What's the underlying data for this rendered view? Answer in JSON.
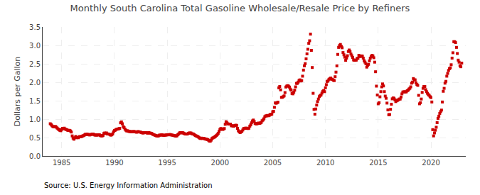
{
  "chart_data": {
    "type": "scatter",
    "title": "Monthly South Carolina Total Gasoline Wholesale/Resale Price by Refiners",
    "ylabel": "Dollars per Gallon",
    "annotations": [
      "Source: U.S. Energy Information Administration"
    ],
    "color": "#cc0000",
    "marker": "square",
    "grid": true,
    "xlim": [
      1983.2,
      2023.3
    ],
    "xticks": [
      1985,
      1990,
      1995,
      2000,
      2005,
      2010,
      2015,
      2020
    ],
    "ylim": [
      0.0,
      3.5
    ],
    "yticks": [
      {
        "value": 0.0,
        "label": "0.0"
      },
      0.5,
      {
        "value": 1.0,
        "label": "1.0"
      },
      1.5,
      {
        "value": 2.0,
        "label": "2.0"
      },
      2.5,
      {
        "value": 3.0,
        "label": "3.0"
      },
      3.5
    ],
    "x": [
      1983.917,
      1984.0,
      1984.083,
      1984.167,
      1984.25,
      1984.333,
      1984.417,
      1984.5,
      1984.583,
      1984.667,
      1984.75,
      1984.833,
      1984.917,
      1985.0,
      1985.083,
      1985.167,
      1985.25,
      1985.333,
      1985.417,
      1985.5,
      1985.583,
      1985.667,
      1985.75,
      1985.833,
      1985.917,
      1986.0,
      1986.083,
      1986.167,
      1986.25,
      1986.333,
      1986.417,
      1986.5,
      1986.583,
      1986.667,
      1986.75,
      1986.833,
      1986.917,
      1987.0,
      1987.083,
      1987.167,
      1987.25,
      1987.333,
      1987.417,
      1987.5,
      1987.583,
      1987.667,
      1987.75,
      1987.833,
      1987.917,
      1988.0,
      1988.083,
      1988.167,
      1988.25,
      1988.333,
      1988.417,
      1988.5,
      1988.583,
      1988.667,
      1988.75,
      1988.833,
      1988.917,
      1989.0,
      1989.083,
      1989.167,
      1989.25,
      1989.333,
      1989.417,
      1989.5,
      1989.583,
      1989.667,
      1989.75,
      1989.833,
      1989.917,
      1990.0,
      1990.083,
      1990.167,
      1990.25,
      1990.333,
      1990.417,
      1990.5,
      1990.583,
      1990.667,
      1990.75,
      1990.833,
      1990.917,
      1991.0,
      1991.083,
      1991.167,
      1991.25,
      1991.333,
      1991.417,
      1991.5,
      1991.583,
      1991.667,
      1991.75,
      1991.833,
      1991.917,
      1992.0,
      1992.083,
      1992.167,
      1992.25,
      1992.333,
      1992.417,
      1992.5,
      1992.583,
      1992.667,
      1992.75,
      1992.833,
      1992.917,
      1993.0,
      1993.083,
      1993.167,
      1993.25,
      1993.333,
      1993.417,
      1993.5,
      1993.583,
      1993.667,
      1993.75,
      1993.833,
      1993.917,
      1994.0,
      1994.083,
      1994.167,
      1994.25,
      1994.333,
      1994.417,
      1994.5,
      1994.583,
      1994.667,
      1994.75,
      1994.833,
      1994.917,
      1995.0,
      1995.083,
      1995.167,
      1995.25,
      1995.333,
      1995.417,
      1995.5,
      1995.583,
      1995.667,
      1995.75,
      1995.833,
      1995.917,
      1996.0,
      1996.083,
      1996.167,
      1996.25,
      1996.333,
      1996.417,
      1996.5,
      1996.583,
      1996.667,
      1996.75,
      1996.833,
      1996.917,
      1997.0,
      1997.083,
      1997.167,
      1997.25,
      1997.333,
      1997.417,
      1997.5,
      1997.583,
      1997.667,
      1997.75,
      1997.833,
      1997.917,
      1998.0,
      1998.083,
      1998.167,
      1998.25,
      1998.333,
      1998.417,
      1998.5,
      1998.583,
      1998.667,
      1998.75,
      1998.833,
      1998.917,
      1999.0,
      1999.083,
      1999.167,
      1999.25,
      1999.333,
      1999.417,
      1999.5,
      1999.583,
      1999.667,
      1999.75,
      1999.833,
      1999.917,
      2000.0,
      2000.083,
      2000.167,
      2000.25,
      2000.333,
      2000.417,
      2000.5,
      2000.583,
      2000.667,
      2000.75,
      2000.833,
      2000.917,
      2001.0,
      2001.083,
      2001.167,
      2001.25,
      2001.333,
      2001.417,
      2001.5,
      2001.583,
      2001.667,
      2001.75,
      2001.833,
      2001.917,
      2002.0,
      2002.083,
      2002.167,
      2002.25,
      2002.333,
      2002.417,
      2002.5,
      2002.583,
      2002.667,
      2002.75,
      2002.833,
      2002.917,
      2003.0,
      2003.083,
      2003.167,
      2003.25,
      2003.333,
      2003.417,
      2003.5,
      2003.583,
      2003.667,
      2003.75,
      2003.833,
      2003.917,
      2004.0,
      2004.083,
      2004.167,
      2004.25,
      2004.333,
      2004.417,
      2004.5,
      2004.583,
      2004.667,
      2004.75,
      2004.833,
      2004.917,
      2005.0,
      2005.083,
      2005.167,
      2005.25,
      2005.333,
      2005.417,
      2005.5,
      2005.583,
      2005.667,
      2005.75,
      2005.833,
      2005.917,
      2006.0,
      2006.083,
      2006.167,
      2006.25,
      2006.333,
      2006.417,
      2006.5,
      2006.583,
      2006.667,
      2006.75,
      2006.833,
      2006.917,
      2007.0,
      2007.083,
      2007.167,
      2007.25,
      2007.333,
      2007.417,
      2007.5,
      2007.583,
      2007.667,
      2007.75,
      2007.833,
      2007.917,
      2008.0,
      2008.083,
      2008.167,
      2008.25,
      2008.333,
      2008.417,
      2008.5,
      2008.583,
      2008.667,
      2008.75,
      2008.833,
      2008.917,
      2009.0,
      2009.083,
      2009.167,
      2009.25,
      2009.333,
      2009.417,
      2009.5,
      2009.583,
      2009.667,
      2009.75,
      2009.833,
      2009.917,
      2010.0,
      2010.083,
      2010.167,
      2010.25,
      2010.333,
      2010.417,
      2010.5,
      2010.583,
      2010.667,
      2010.75,
      2010.833,
      2010.917,
      2011.0,
      2011.083,
      2011.167,
      2011.25,
      2011.333,
      2011.417,
      2011.5,
      2011.583,
      2011.667,
      2011.75,
      2011.833,
      2011.917,
      2012.0,
      2012.083,
      2012.167,
      2012.25,
      2012.333,
      2012.417,
      2012.5,
      2012.583,
      2012.667,
      2012.75,
      2012.833,
      2012.917,
      2013.0,
      2013.083,
      2013.167,
      2013.25,
      2013.333,
      2013.417,
      2013.5,
      2013.583,
      2013.667,
      2013.75,
      2013.833,
      2013.917,
      2014.0,
      2014.083,
      2014.167,
      2014.25,
      2014.333,
      2014.417,
      2014.5,
      2014.583,
      2014.667,
      2014.75,
      2014.833,
      2014.917,
      2015.0,
      2015.083,
      2015.167,
      2015.25,
      2015.333,
      2015.417,
      2015.5,
      2015.583,
      2015.667,
      2015.75,
      2015.833,
      2015.917,
      2016.0,
      2016.083,
      2016.167,
      2016.25,
      2016.333,
      2016.417,
      2016.5,
      2016.583,
      2016.667,
      2016.75,
      2016.833,
      2016.917,
      2017.0,
      2017.083,
      2017.167,
      2017.25,
      2017.333,
      2017.417,
      2017.5,
      2017.583,
      2017.667,
      2017.75,
      2017.833,
      2017.917,
      2018.0,
      2018.083,
      2018.167,
      2018.25,
      2018.333,
      2018.417,
      2018.5,
      2018.583,
      2018.667,
      2018.75,
      2018.833,
      2018.917,
      2019.0,
      2019.083,
      2019.167,
      2019.25,
      2019.333,
      2019.417,
      2019.5,
      2019.583,
      2019.667,
      2019.75,
      2019.833,
      2019.917,
      2020.0,
      2020.083,
      2020.167,
      2020.25,
      2020.333,
      2020.417,
      2020.5,
      2020.583,
      2020.667,
      2020.75,
      2020.833,
      2020.917,
      2021.0,
      2021.083,
      2021.167,
      2021.25,
      2021.333,
      2021.417,
      2021.5,
      2021.583,
      2021.667,
      2021.75,
      2021.833,
      2021.917,
      2022.0,
      2022.083,
      2022.167,
      2022.25,
      2022.333,
      2022.417,
      2022.5,
      2022.583,
      2022.667,
      2022.75,
      2022.833,
      2022.917
    ],
    "values": [
      0.875,
      0.855,
      0.82,
      0.8,
      0.79,
      0.795,
      0.8,
      0.78,
      0.755,
      0.73,
      0.715,
      0.695,
      0.685,
      0.72,
      0.75,
      0.74,
      0.755,
      0.73,
      0.72,
      0.71,
      0.695,
      0.695,
      0.695,
      0.68,
      0.65,
      0.545,
      0.485,
      0.455,
      0.495,
      0.53,
      0.495,
      0.5,
      0.495,
      0.525,
      0.525,
      0.52,
      0.535,
      0.545,
      0.555,
      0.57,
      0.59,
      0.58,
      0.595,
      0.585,
      0.575,
      0.57,
      0.585,
      0.585,
      0.595,
      0.595,
      0.575,
      0.565,
      0.575,
      0.565,
      0.57,
      0.575,
      0.575,
      0.555,
      0.545,
      0.545,
      0.555,
      0.61,
      0.625,
      0.61,
      0.625,
      0.6,
      0.595,
      0.595,
      0.575,
      0.565,
      0.575,
      0.6,
      0.655,
      0.69,
      0.7,
      0.72,
      0.73,
      0.73,
      0.74,
      0.75,
      0.9,
      0.925,
      0.875,
      0.8,
      0.77,
      0.73,
      0.7,
      0.68,
      0.685,
      0.67,
      0.665,
      0.665,
      0.655,
      0.66,
      0.66,
      0.665,
      0.66,
      0.655,
      0.645,
      0.65,
      0.665,
      0.655,
      0.65,
      0.645,
      0.635,
      0.625,
      0.625,
      0.635,
      0.635,
      0.635,
      0.625,
      0.62,
      0.635,
      0.625,
      0.62,
      0.615,
      0.6,
      0.585,
      0.575,
      0.565,
      0.555,
      0.545,
      0.545,
      0.545,
      0.565,
      0.565,
      0.57,
      0.575,
      0.565,
      0.56,
      0.565,
      0.565,
      0.57,
      0.575,
      0.575,
      0.575,
      0.585,
      0.575,
      0.57,
      0.565,
      0.56,
      0.555,
      0.545,
      0.545,
      0.545,
      0.575,
      0.595,
      0.625,
      0.635,
      0.625,
      0.635,
      0.63,
      0.615,
      0.6,
      0.595,
      0.595,
      0.595,
      0.615,
      0.625,
      0.62,
      0.625,
      0.605,
      0.6,
      0.595,
      0.575,
      0.555,
      0.545,
      0.535,
      0.525,
      0.505,
      0.485,
      0.475,
      0.485,
      0.475,
      0.48,
      0.475,
      0.465,
      0.455,
      0.455,
      0.445,
      0.43,
      0.405,
      0.4,
      0.43,
      0.475,
      0.49,
      0.505,
      0.515,
      0.535,
      0.555,
      0.58,
      0.615,
      0.665,
      0.72,
      0.745,
      0.735,
      0.72,
      0.73,
      0.745,
      0.86,
      0.93,
      0.9,
      0.875,
      0.865,
      0.865,
      0.865,
      0.82,
      0.82,
      0.815,
      0.81,
      0.825,
      0.835,
      0.83,
      0.75,
      0.685,
      0.655,
      0.635,
      0.655,
      0.67,
      0.705,
      0.745,
      0.75,
      0.755,
      0.755,
      0.75,
      0.745,
      0.755,
      0.81,
      0.845,
      0.9,
      0.95,
      0.975,
      0.935,
      0.885,
      0.87,
      0.875,
      0.88,
      0.895,
      0.885,
      0.895,
      0.91,
      0.955,
      0.975,
      1.01,
      1.065,
      1.085,
      1.09,
      1.1,
      1.09,
      1.1,
      1.125,
      1.125,
      1.135,
      1.2,
      1.21,
      1.32,
      1.44,
      1.43,
      1.445,
      1.46,
      1.85,
      1.885,
      1.795,
      1.59,
      1.595,
      1.61,
      1.63,
      1.72,
      1.87,
      1.895,
      1.91,
      1.895,
      1.87,
      1.815,
      1.785,
      1.695,
      1.685,
      1.73,
      1.785,
      1.875,
      1.97,
      1.97,
      2.005,
      2.05,
      2.065,
      2.035,
      2.045,
      2.165,
      2.33,
      2.445,
      2.505,
      2.635,
      2.77,
      2.895,
      3.055,
      3.125,
      3.305,
      2.865,
      2.4,
      1.7,
      1.265,
      1.135,
      1.275,
      1.38,
      1.475,
      1.545,
      1.61,
      1.64,
      1.655,
      1.705,
      1.755,
      1.775,
      1.745,
      1.85,
      1.935,
      2.02,
      2.04,
      2.08,
      2.095,
      2.115,
      2.085,
      2.075,
      2.055,
      2.045,
      2.15,
      2.275,
      2.445,
      2.755,
      2.945,
      2.995,
      3.025,
      2.975,
      2.935,
      2.805,
      2.745,
      2.68,
      2.595,
      2.655,
      2.72,
      2.835,
      2.875,
      2.835,
      2.765,
      2.72,
      2.67,
      2.605,
      2.595,
      2.6,
      2.6,
      2.645,
      2.65,
      2.73,
      2.7,
      2.7,
      2.715,
      2.71,
      2.655,
      2.585,
      2.545,
      2.5,
      2.41,
      2.46,
      2.485,
      2.58,
      2.655,
      2.695,
      2.73,
      2.715,
      2.665,
      2.545,
      2.285,
      1.895,
      1.655,
      1.415,
      1.445,
      1.605,
      1.745,
      1.875,
      1.955,
      1.9,
      1.745,
      1.625,
      1.565,
      1.435,
      1.25,
      1.12,
      1.125,
      1.265,
      1.405,
      1.55,
      1.575,
      1.565,
      1.525,
      1.475,
      1.5,
      1.51,
      1.525,
      1.545,
      1.545,
      1.6,
      1.685,
      1.735,
      1.74,
      1.74,
      1.74,
      1.74,
      1.77,
      1.785,
      1.815,
      1.835,
      1.875,
      1.975,
      2.005,
      2.1,
      2.065,
      2.065,
      1.985,
      1.94,
      1.915,
      1.645,
      1.415,
      1.445,
      1.545,
      1.725,
      1.835,
      1.885,
      1.885,
      1.8,
      1.745,
      1.7,
      1.665,
      1.645,
      1.61,
      1.585,
      1.465,
      0.715,
      0.545,
      0.625,
      0.7,
      0.78,
      0.905,
      1.02,
      1.08,
      1.155,
      1.205,
      1.245,
      1.465,
      1.755,
      1.835,
      1.975,
      2.025,
      2.165,
      2.24,
      2.32,
      2.37,
      2.39,
      2.475,
      2.655,
      2.8,
      3.1,
      3.1,
      3.075,
      2.945,
      2.78,
      2.6,
      2.545,
      2.45,
      2.42,
      2.52
    ]
  }
}
